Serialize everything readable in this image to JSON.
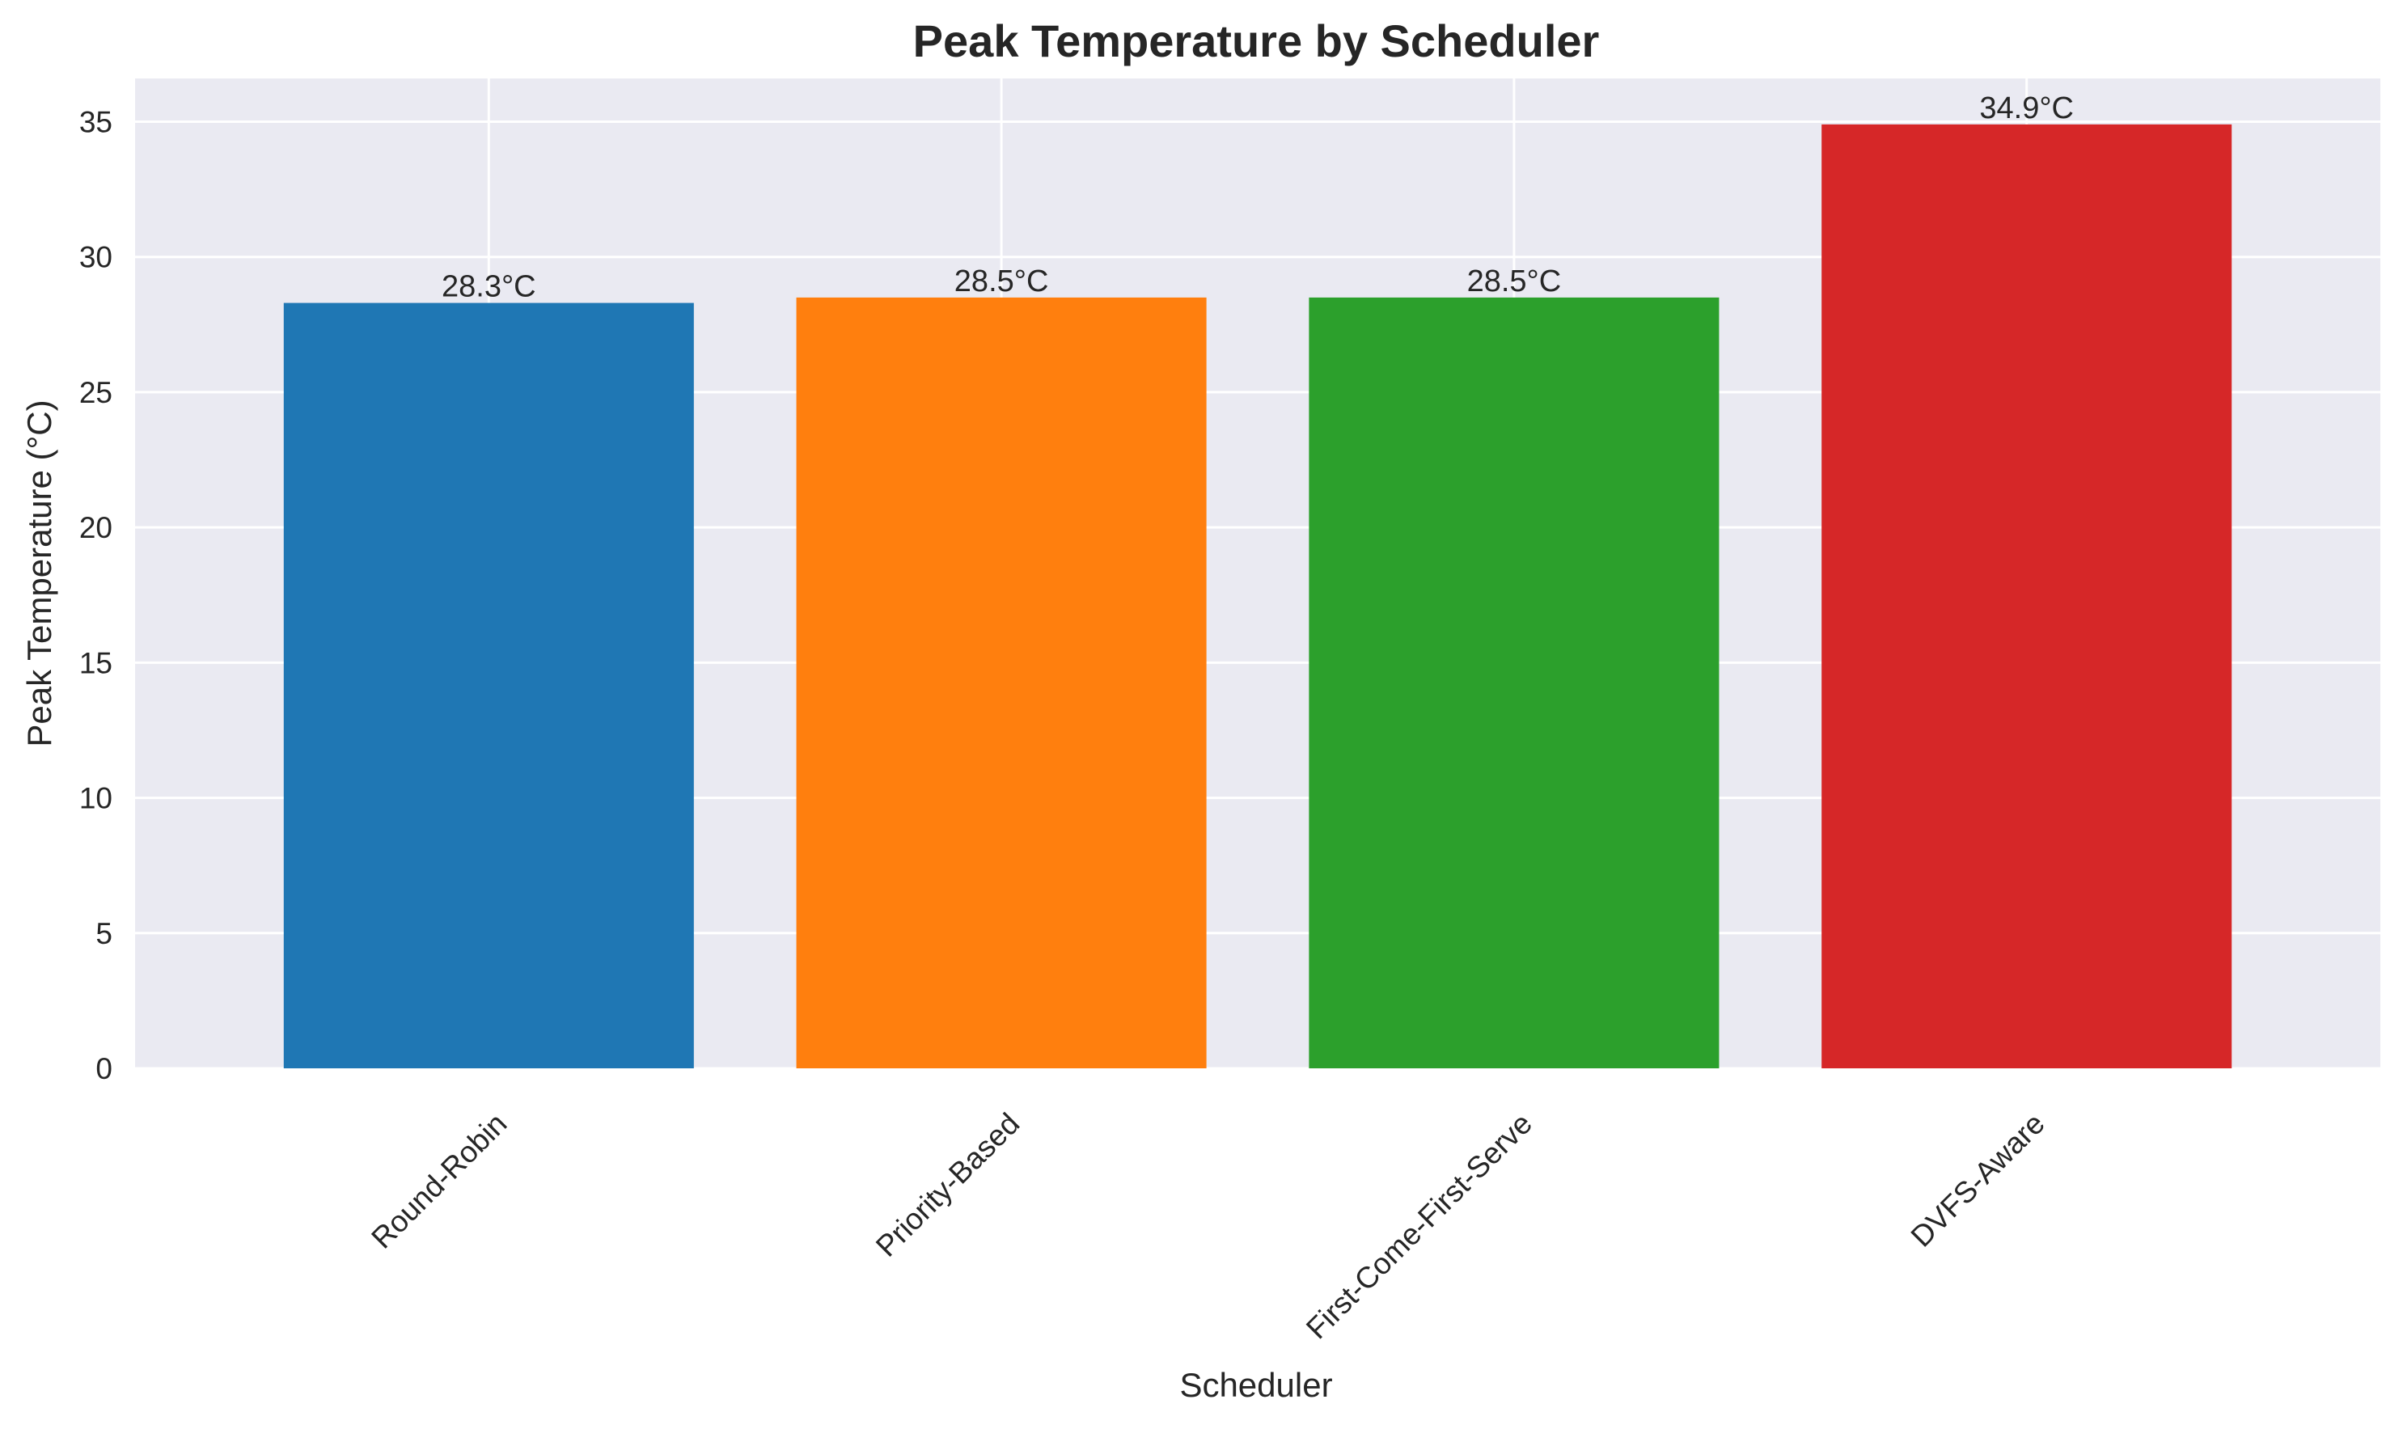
{
  "chart_data": {
    "type": "bar",
    "title": "Peak Temperature by Scheduler",
    "xlabel": "Scheduler",
    "ylabel": "Peak Temperature (°C)",
    "categories": [
      "Round-Robin",
      "Priority-Based",
      "First-Come-First-Serve",
      "DVFS-Aware"
    ],
    "values": [
      28.3,
      28.5,
      28.5,
      34.9
    ],
    "data_labels": [
      "28.3°C",
      "28.5°C",
      "28.5°C",
      "34.9°C"
    ],
    "colors": [
      "#1f77b4",
      "#ff7f0e",
      "#2ca02c",
      "#d62728"
    ],
    "ylim": [
      0,
      36.6
    ],
    "yticks": [
      0,
      5,
      10,
      15,
      20,
      25,
      30,
      35
    ],
    "xtick_rotation": "45 degrees",
    "grid": true,
    "plot_background": "#eaeaf2",
    "grid_color": "#ffffff",
    "legend": "none"
  }
}
